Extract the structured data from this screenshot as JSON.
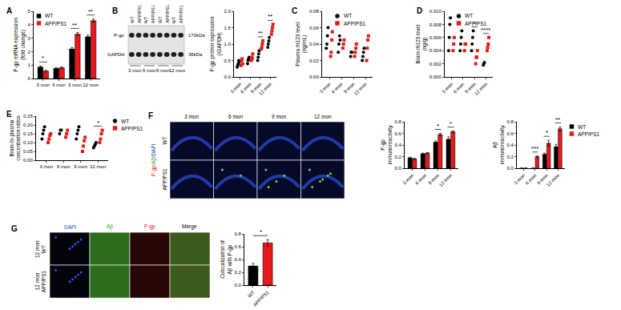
{
  "chart_data": [
    {
      "panel": "A",
      "type": "bar",
      "ytitle": [
        "P-gp mRNA expression",
        "(fold change)"
      ],
      "categories": [
        "3 mon",
        "6 mon",
        "9 mon",
        "12 mon"
      ],
      "series": [
        {
          "name": "WT",
          "color": "#000000",
          "values": [
            0.85,
            0.75,
            2.2,
            3.1
          ],
          "errors": [
            0.08,
            0.06,
            0.1,
            0.12
          ]
        },
        {
          "name": "APP/PS1",
          "color": "#e41a1c",
          "values": [
            0.55,
            0.8,
            3.3,
            4.3
          ],
          "errors": [
            0.06,
            0.07,
            0.12,
            0.12
          ]
        }
      ],
      "ylim": [
        0,
        5
      ],
      "yticks": [
        0,
        1,
        2,
        3,
        4,
        5
      ],
      "legend": "top left",
      "annotations": [
        {
          "category": "3 mon",
          "text": "*"
        },
        {
          "category": "9 mon",
          "text": "**"
        },
        {
          "category": "12 mon",
          "text": "**"
        }
      ]
    },
    {
      "panel": "B",
      "type": "scatter",
      "ytitle": [
        "P-gp protein expression",
        "(/GAPDH)"
      ],
      "categories": [
        "3 mon",
        "6 mon",
        "9 mon",
        "12 mon"
      ],
      "series": [
        {
          "name": "WT",
          "color": "#000000",
          "marker": "circle",
          "values": [
            [
              0.3,
              0.35,
              0.4,
              0.5,
              0.45
            ],
            [
              0.4,
              0.5,
              0.55,
              0.6
            ],
            [
              0.5,
              0.6,
              0.7,
              0.8
            ],
            [
              0.9,
              1.0,
              1.1,
              1.2
            ]
          ]
        },
        {
          "name": "APP/PS1",
          "color": "#e41a1c",
          "marker": "square",
          "values": [
            [
              0.35,
              0.5,
              0.55,
              0.4
            ],
            [
              0.5,
              0.6,
              0.55,
              0.7
            ],
            [
              0.85,
              0.9,
              1.0,
              1.1
            ],
            [
              1.3,
              1.4,
              1.5,
              1.6
            ]
          ]
        }
      ],
      "ylim": [
        0,
        2
      ],
      "yticks": [
        {
          "value": 0,
          "label": "0.0"
        },
        {
          "value": 0.5,
          "label": "0.5"
        },
        {
          "value": 1,
          "label": "1.0"
        },
        {
          "value": 1.5,
          "label": "1.5"
        },
        {
          "value": 2,
          "label": "2.0"
        }
      ],
      "annotations": [
        {
          "category": "9 mon",
          "text": "**"
        },
        {
          "category": "12 mon",
          "text": "**"
        }
      ]
    },
    {
      "panel": "C",
      "type": "scatter",
      "ytitle": [
        "Plasma rh123 level",
        "(ng/mL)"
      ],
      "categories": [
        "3 mon",
        "6 mon",
        "9 mon",
        "12 mon"
      ],
      "series": [
        {
          "name": "WT",
          "color": "#000000",
          "marker": "circle",
          "values": [
            [
              0.035,
              0.04,
              0.05,
              0.06
            ],
            [
              0.03,
              0.04,
              0.05,
              0.045
            ],
            [
              0.025,
              0.03,
              0.03
            ],
            [
              0.02,
              0.025,
              0.03,
              0.035
            ]
          ]
        },
        {
          "name": "APP/PS1",
          "color": "#e41a1c",
          "marker": "square",
          "values": [
            [
              0.025,
              0.03,
              0.045,
              0.055
            ],
            [
              0.035,
              0.04,
              0.045
            ],
            [
              0.025,
              0.03,
              0.035,
              0.04
            ],
            [
              0.02,
              0.035,
              0.045,
              0.05
            ]
          ]
        }
      ],
      "ylim": [
        0,
        0.08
      ],
      "yticks": [
        {
          "value": 0,
          "label": "0.00"
        },
        {
          "value": 0.02,
          "label": "0.02"
        },
        {
          "value": 0.04,
          "label": "0.04"
        },
        {
          "value": 0.06,
          "label": "0.06"
        },
        {
          "value": 0.08,
          "label": "0.08"
        }
      ],
      "legend": "top center"
    },
    {
      "panel": "D",
      "type": "scatter",
      "ytitle": [
        "Brain rh123 level",
        "(ng/g)"
      ],
      "categories": [
        "3 mon",
        "6 mon",
        "9 mon",
        "12 mon"
      ],
      "series": [
        {
          "name": "WT",
          "color": "#000000",
          "marker": "circle",
          "values": [
            [
              0.004,
              0.006,
              0.008,
              0.009
            ],
            [
              0.004,
              0.005,
              0.006,
              0.007
            ],
            [
              0.004,
              0.005,
              0.006,
              0.007
            ],
            [
              0.0018,
              0.002,
              0.0022
            ]
          ]
        },
        {
          "name": "APP/PS1",
          "color": "#e41a1c",
          "marker": "square",
          "values": [
            [
              0.004,
              0.005,
              0.006
            ],
            [
              0.004,
              0.005,
              0.005
            ],
            [
              0.002,
              0.003,
              0.003,
              0.004
            ],
            [
              0.004,
              0.0045,
              0.005,
              0.006
            ]
          ]
        }
      ],
      "ylim": [
        0,
        0.01
      ],
      "yticks": [
        {
          "value": 0,
          "label": "0.000"
        },
        {
          "value": 0.002,
          "label": "0.002"
        },
        {
          "value": 0.004,
          "label": "0.004"
        },
        {
          "value": 0.006,
          "label": "0.006"
        },
        {
          "value": 0.008,
          "label": "0.008"
        },
        {
          "value": 0.01,
          "label": "0.010"
        }
      ],
      "legend": "top center",
      "annotations": [
        {
          "category": "9 mon",
          "text": "*"
        },
        {
          "category": "12 mon",
          "text": "****"
        }
      ]
    },
    {
      "panel": "E",
      "type": "scatter",
      "ytitle": [
        "Brain-to-plasma",
        "concentration ratios"
      ],
      "categories": [
        "3 mon",
        "6 mon",
        "9 mon",
        "12 mon"
      ],
      "series": [
        {
          "name": "WT",
          "color": "#000000",
          "marker": "circle",
          "values": [
            [
              0.12,
              0.15,
              0.17,
              0.19
            ],
            [
              0.15,
              0.17,
              0.17
            ],
            [
              0.12,
              0.15,
              0.17,
              0.19
            ],
            [
              0.07,
              0.08,
              0.09,
              0.1
            ]
          ]
        },
        {
          "name": "APP/PS1",
          "color": "#e41a1c",
          "marker": "square",
          "values": [
            [
              0.1,
              0.12,
              0.14,
              0.15
            ],
            [
              0.13,
              0.15,
              0.17
            ],
            [
              0.05,
              0.08,
              0.11,
              0.13
            ],
            [
              0.1,
              0.12,
              0.15,
              0.17
            ]
          ]
        }
      ],
      "ylim": [
        0,
        0.25
      ],
      "yticks": [
        {
          "value": 0,
          "label": "0.00"
        },
        {
          "value": 0.05,
          "label": "0.05"
        },
        {
          "value": 0.1,
          "label": "0.10"
        },
        {
          "value": 0.15,
          "label": "0.15"
        },
        {
          "value": 0.2,
          "label": "0.20"
        },
        {
          "value": 0.25,
          "label": "0.25"
        }
      ],
      "legend": "right",
      "annotations": [
        {
          "category": "12 mon",
          "text": "*"
        }
      ]
    },
    {
      "panel": "F",
      "type": "bar",
      "ytitle": [
        "P-gp",
        "immunoreactivity"
      ],
      "categories": [
        "3 mon",
        "6 mon",
        "9 mon",
        "12 mon"
      ],
      "series": [
        {
          "name": "WT",
          "color": "#000000",
          "values": [
            0.18,
            0.25,
            0.45,
            0.5
          ],
          "errors": [
            0.01,
            0.01,
            0.02,
            0.04
          ]
        },
        {
          "name": "APP/PS1",
          "color": "#e41a1c",
          "values": [
            0.16,
            0.26,
            0.58,
            0.63
          ],
          "errors": [
            0.01,
            0.01,
            0.02,
            0.01
          ]
        }
      ],
      "ylim": [
        0,
        0.8
      ],
      "yticks": [
        {
          "value": 0,
          "label": "0.0"
        },
        {
          "value": 0.2,
          "label": "0.2"
        },
        {
          "value": 0.4,
          "label": "0.4"
        },
        {
          "value": 0.6,
          "label": "0.6"
        },
        {
          "value": 0.8,
          "label": "0.8"
        }
      ],
      "annotations": [
        {
          "category": "9 mon",
          "text": "*"
        },
        {
          "category": "12 mon",
          "text": "*"
        }
      ]
    },
    {
      "panel": "F",
      "type": "bar",
      "ytitle": [
        "Aβ",
        "immunoreactivity"
      ],
      "categories": [
        "3 mon",
        "6 mon",
        "9 mon",
        "12 mon"
      ],
      "series": [
        {
          "name": "WT",
          "color": "#000000",
          "values": [
            0,
            0,
            0.24,
            0.37
          ],
          "errors": [
            0,
            0,
            0.02,
            0.04
          ]
        },
        {
          "name": "APP/PS1",
          "color": "#e41a1c",
          "values": [
            0,
            0.2,
            0.43,
            0.68
          ],
          "errors": [
            0,
            0.01,
            0.05,
            0.03
          ]
        }
      ],
      "ylim": [
        0,
        0.8
      ],
      "yticks": [
        {
          "value": 0,
          "label": "0.0"
        },
        {
          "value": 0.2,
          "label": "0.2"
        },
        {
          "value": 0.4,
          "label": "0.4"
        },
        {
          "value": 0.6,
          "label": "0.6"
        },
        {
          "value": 0.8,
          "label": "0.8"
        }
      ],
      "legend": "right",
      "annotations": [
        {
          "category": "6 mon",
          "text": "***"
        },
        {
          "category": "9 mon",
          "text": "*"
        },
        {
          "category": "12 mon",
          "text": "**"
        }
      ]
    },
    {
      "panel": "G",
      "type": "bar",
      "ytitle": [
        "Colocalization of",
        "Aβ with P-gp"
      ],
      "categories": [
        "WT",
        "APP/PS1"
      ],
      "series": [
        {
          "values": [
            0.3,
            0.66
          ],
          "errors": [
            0.04,
            0.05
          ],
          "colors": [
            "#000000",
            "#e41a1c"
          ]
        }
      ],
      "ylim": [
        0,
        0.8
      ],
      "yticks": [
        {
          "value": 0,
          "label": "0.0"
        },
        {
          "value": 0.2,
          "label": "0.2"
        },
        {
          "value": 0.4,
          "label": "0.4"
        },
        {
          "value": 0.6,
          "label": "0.6"
        },
        {
          "value": 0.8,
          "label": "0.8"
        }
      ],
      "annotations": [
        {
          "categories": [
            "WT",
            "APP/PS1"
          ],
          "text": "*"
        }
      ]
    }
  ],
  "image_panels": [
    {
      "panel": "B",
      "kind": "blot",
      "lanes": [
        "WT",
        "APP/PS1",
        "WT",
        "APP/PS1",
        "WT",
        "APP/PS1",
        "WT",
        "APP/PS1"
      ],
      "bands": [
        {
          "name": "P-gp",
          "size": "170kDa"
        },
        {
          "name": "GAPDH",
          "size": "36kDa"
        }
      ],
      "groups": [
        "3 mon",
        "6 mon",
        "9 mon",
        "12 mon"
      ]
    },
    {
      "panel": "F",
      "kind": "micrograph",
      "columns": [
        {
          "text": "3 mon",
          "color": "#000000"
        },
        {
          "text": "6 mon",
          "color": "#000000"
        },
        {
          "text": "9 mon",
          "color": "#000000"
        },
        {
          "text": "12 mon",
          "color": "#000000"
        }
      ],
      "rows": [
        [
          "WT"
        ],
        [
          "APP/PS1"
        ]
      ],
      "stain_label": [
        {
          "text": "P-gp",
          "color": "#e41a1c"
        },
        {
          "text": "/Aβ",
          "color": "#2ca02c"
        },
        {
          "text": "/DAPI",
          "color": "#1f3fbf"
        }
      ]
    },
    {
      "panel": "G",
      "kind": "micrograph",
      "columns": [
        {
          "text": "DAPI",
          "color": "#1f3fbf"
        },
        {
          "text": "Aβ",
          "color": "#2ca02c"
        },
        {
          "text": "P-gp",
          "color": "#e41a1c"
        },
        {
          "text": "Merge",
          "color": "#000000"
        }
      ],
      "rows": [
        [
          "12 mon",
          "WT"
        ],
        [
          "12 mon",
          "APP/PS1"
        ]
      ]
    }
  ]
}
